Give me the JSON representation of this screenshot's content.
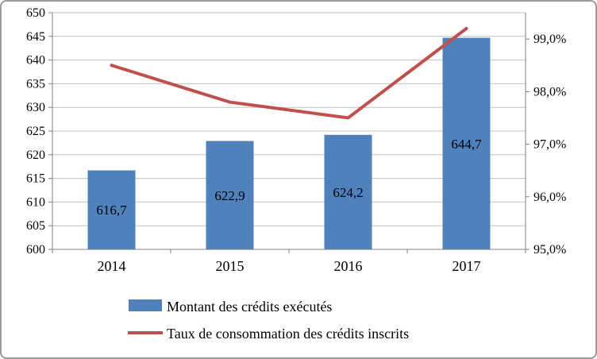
{
  "chart_data": {
    "type": "combo-bar-line",
    "categories": [
      "2014",
      "2015",
      "2016",
      "2017"
    ],
    "bar_series": {
      "name": "Montant des crédits exécutés",
      "values": [
        616.7,
        622.9,
        624.2,
        644.7
      ],
      "labels": [
        "616,7",
        "622,9",
        "624,2",
        "644,7"
      ],
      "axis": "left"
    },
    "line_series": {
      "name": "Taux de consommation des crédits inscrits",
      "values": [
        98.5,
        97.8,
        97.5,
        99.2
      ],
      "axis": "right"
    },
    "left_axis": {
      "min": 600,
      "max": 650,
      "step": 5,
      "tick_labels": [
        "600",
        "605",
        "610",
        "615",
        "620",
        "625",
        "630",
        "635",
        "640",
        "645",
        "650"
      ]
    },
    "right_axis": {
      "min": 95,
      "max": 99.5,
      "tick_values": [
        95,
        96,
        97,
        98,
        99
      ],
      "tick_labels": [
        "95,0%",
        "96,0%",
        "97,0%",
        "98,0%",
        "99,0%"
      ]
    },
    "grid": true,
    "legend_position": "bottom",
    "colors": {
      "bar": "#4f81bd",
      "line": "#c0504d",
      "grid": "#c0c0c0",
      "axis": "#808080",
      "text": "#000000"
    }
  }
}
